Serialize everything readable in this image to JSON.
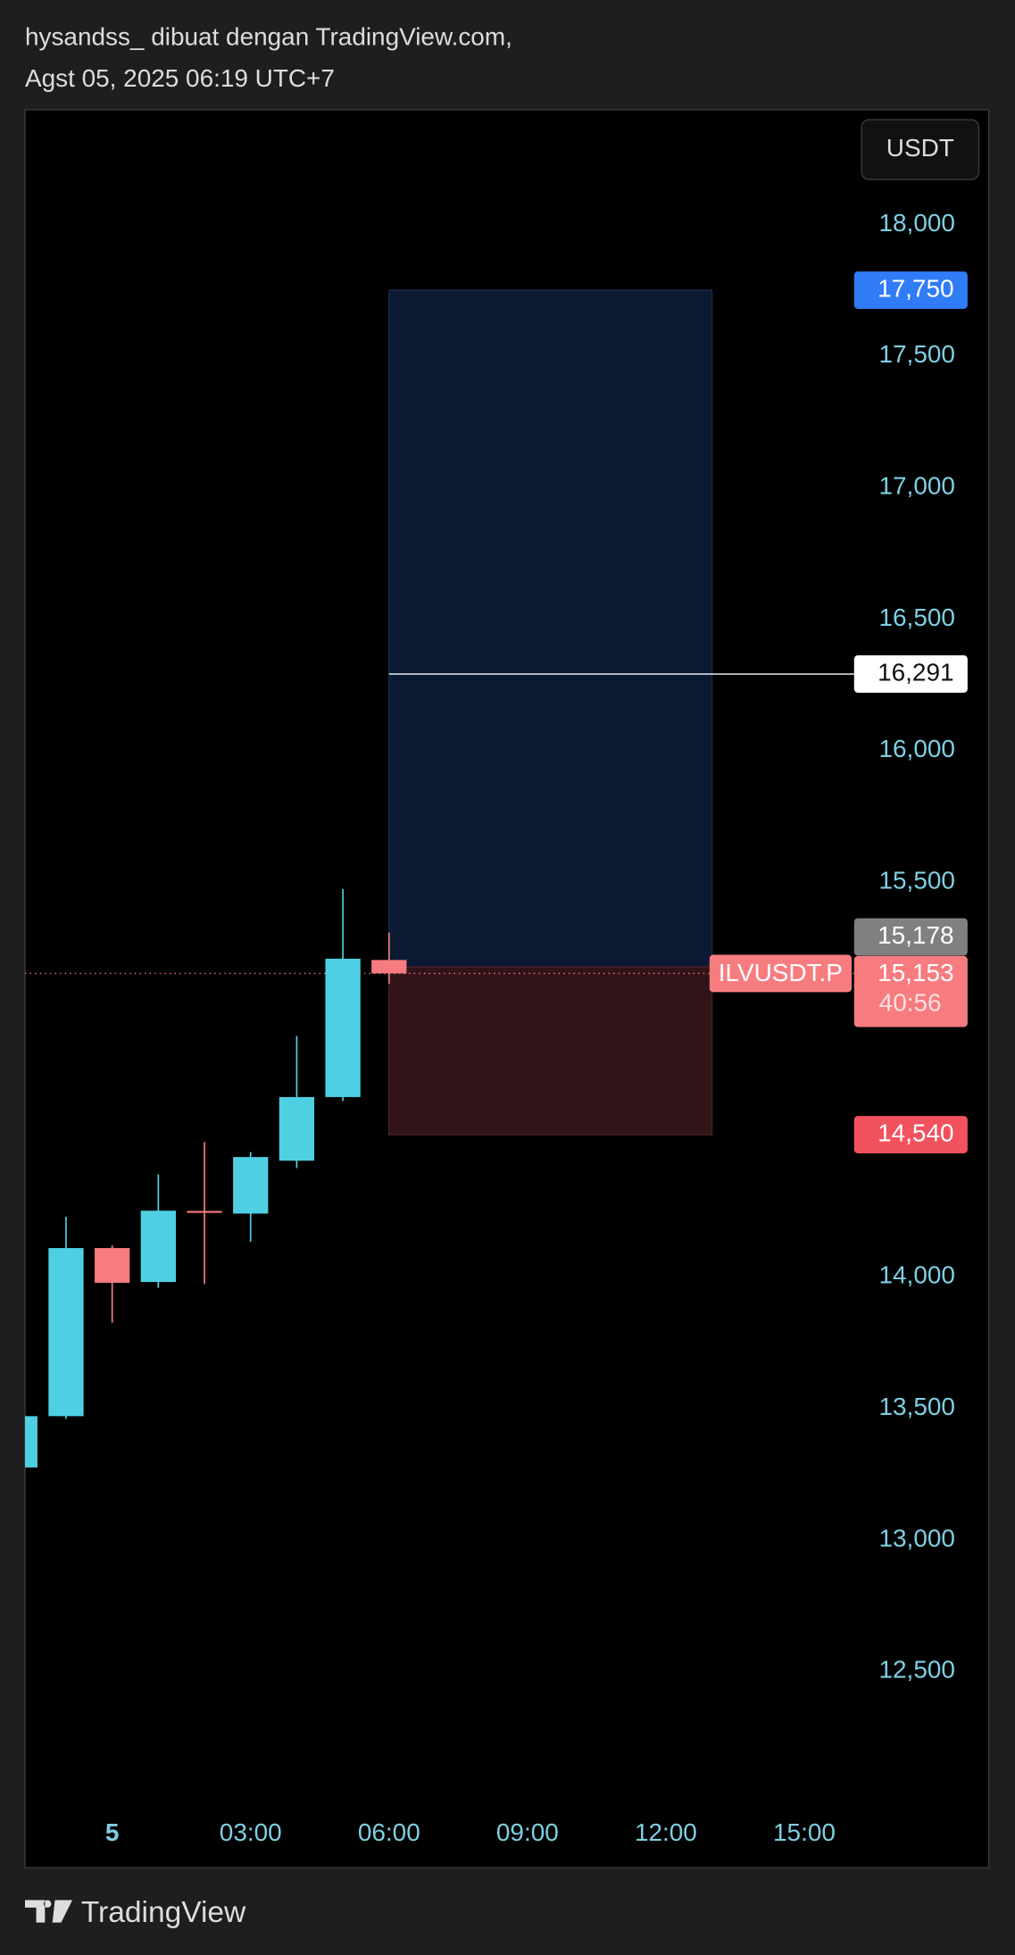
{
  "header": {
    "author_line": "hysandss_ dibuat dengan TradingView.com,",
    "date_line": "Agst 05, 2025 06:19 UTC+7"
  },
  "footer": {
    "brand": "TradingView"
  },
  "chart_data": {
    "type": "candlestick",
    "currency": "USDT",
    "symbol": "ILVUSDT.P",
    "countdown": "40:56",
    "x": [
      -2,
      -1,
      0,
      1,
      2,
      3,
      4,
      5,
      6
    ],
    "open": [
      13275,
      13470,
      14109,
      13980,
      14250,
      14240,
      14441,
      14683,
      15204
    ],
    "high": [
      13470,
      14228,
      14119,
      14389,
      14512,
      14474,
      14915,
      15474,
      15308
    ],
    "low": [
      13275,
      13460,
      13825,
      13958,
      13972,
      14133,
      14413,
      14668,
      15114
    ],
    "close": [
      13470,
      14109,
      13977,
      14251,
      14245,
      14455,
      14683,
      15209,
      15153
    ],
    "up_color": "#4fd0e2",
    "down_color": "#f77c80",
    "xlim": [
      -1.89,
      16.08
    ],
    "xticks": [
      {
        "value": 0,
        "label": "5"
      },
      {
        "value": 3,
        "label": "03:00"
      },
      {
        "value": 6,
        "label": "06:00"
      },
      {
        "value": 9,
        "label": "09:00"
      },
      {
        "value": 12,
        "label": "12:00"
      },
      {
        "value": 15,
        "label": "15:00"
      }
    ],
    "ylim": [
      12000,
      18436
    ],
    "yticks": [
      {
        "value": 18000,
        "label": "18,000"
      },
      {
        "value": 17500,
        "label": "17,500"
      },
      {
        "value": 17000,
        "label": "17,000"
      },
      {
        "value": 16500,
        "label": "16,500"
      },
      {
        "value": 16000,
        "label": "16,000"
      },
      {
        "value": 15500,
        "label": "15,500"
      },
      {
        "value": 14000,
        "label": "14,000"
      },
      {
        "value": 13500,
        "label": "13,500"
      },
      {
        "value": 13000,
        "label": "13,000"
      },
      {
        "value": 12500,
        "label": "12,500"
      }
    ],
    "position": {
      "start": 6,
      "end": 13,
      "target": {
        "value": 17750,
        "label": "17,750"
      },
      "entry": {
        "value": 15178,
        "label": "15,178"
      },
      "stop": {
        "value": 14540,
        "label": "14,540"
      }
    },
    "marker_line": {
      "value": 16291,
      "label": "16,291"
    },
    "last_price": {
      "value": 15153,
      "label": "15,153"
    }
  }
}
